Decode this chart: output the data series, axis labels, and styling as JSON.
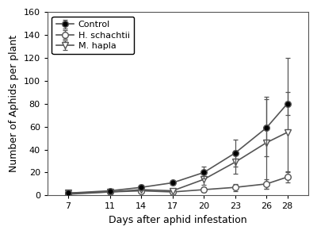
{
  "x": [
    7,
    11,
    14,
    17,
    20,
    23,
    26,
    28
  ],
  "control_y": [
    2,
    4,
    7,
    11,
    20,
    37,
    59,
    80
  ],
  "control_yerr_lo": [
    1,
    1,
    2,
    2,
    5,
    12,
    25,
    10
  ],
  "control_yerr_hi": [
    1,
    1,
    2,
    2,
    5,
    12,
    25,
    10
  ],
  "h_schachtii_y": [
    1,
    3,
    4,
    3,
    5,
    7,
    10,
    16
  ],
  "h_schachtii_yerr_lo": [
    0.5,
    1,
    1,
    1,
    2,
    3,
    4,
    5
  ],
  "h_schachtii_yerr_hi": [
    0.5,
    1,
    1,
    1,
    2,
    3,
    4,
    5
  ],
  "m_hapla_y": [
    2,
    3,
    5,
    4,
    14,
    29,
    46,
    55
  ],
  "m_hapla_yerr_lo": [
    1,
    1,
    2,
    2,
    5,
    10,
    40,
    35
  ],
  "m_hapla_yerr_hi": [
    1,
    1,
    2,
    2,
    5,
    10,
    40,
    65
  ],
  "xlabel": "Days after aphid infestation",
  "ylabel": "Number of Aphids per plant",
  "xlim": [
    5,
    30
  ],
  "ylim": [
    0,
    160
  ],
  "yticks": [
    0,
    20,
    40,
    60,
    80,
    100,
    120,
    140,
    160
  ],
  "xticks": [
    7,
    11,
    14,
    17,
    20,
    23,
    26,
    28
  ],
  "legend_labels": [
    "Control",
    "H. schachtii",
    "M. hapla"
  ],
  "line_color": "#555555",
  "background_color": "#ffffff",
  "figsize": [
    4.0,
    2.95
  ],
  "dpi": 100
}
